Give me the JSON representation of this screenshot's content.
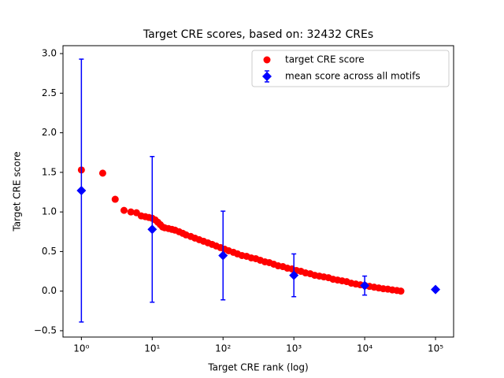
{
  "chart_data": {
    "type": "scatter",
    "title": "Target CRE scores, based on: 32432 CREs",
    "xlabel": "Target CRE rank (log)",
    "ylabel": "Target CRE score",
    "xscale": "log",
    "xlim": [
      0.55,
      180000
    ],
    "ylim": [
      -0.58,
      3.1
    ],
    "xticks": [
      {
        "value": 1,
        "label": "10⁰"
      },
      {
        "value": 10,
        "label": "10¹"
      },
      {
        "value": 100,
        "label": "10²"
      },
      {
        "value": 1000,
        "label": "10³"
      },
      {
        "value": 10000,
        "label": "10⁴"
      },
      {
        "value": 100000,
        "label": "10⁵"
      }
    ],
    "yticks": [
      {
        "value": -0.5,
        "label": "−0.5"
      },
      {
        "value": 0,
        "label": "0.0"
      },
      {
        "value": 0.5,
        "label": "0.5"
      },
      {
        "value": 1,
        "label": "1.0"
      },
      {
        "value": 1.5,
        "label": "1.5"
      },
      {
        "value": 2,
        "label": "2.0"
      },
      {
        "value": 2.5,
        "label": "2.5"
      },
      {
        "value": 3,
        "label": "3.0"
      }
    ],
    "legend": "upper right",
    "series": [
      {
        "name": "target CRE score",
        "color": "#ff0000",
        "marker": "circle",
        "x": [
          1,
          2,
          3,
          4,
          5,
          6,
          7,
          8,
          9,
          10,
          11,
          12,
          13,
          14,
          15,
          17,
          19,
          21,
          24,
          27,
          30,
          35,
          40,
          46,
          53,
          61,
          70,
          80,
          92,
          105,
          120,
          140,
          160,
          185,
          215,
          250,
          290,
          335,
          390,
          450,
          520,
          600,
          700,
          810,
          940,
          1090,
          1260,
          1460,
          1700,
          1970,
          2290,
          2650,
          3080,
          3570,
          4140,
          4800,
          5570,
          6460,
          7500,
          8700,
          10100,
          11700,
          13600,
          15800,
          18300,
          21200,
          24600,
          28500,
          32432
        ],
        "values": [
          1.53,
          1.49,
          1.16,
          1.02,
          1.0,
          0.99,
          0.95,
          0.94,
          0.93,
          0.92,
          0.9,
          0.87,
          0.84,
          0.81,
          0.8,
          0.79,
          0.78,
          0.77,
          0.75,
          0.73,
          0.71,
          0.69,
          0.67,
          0.65,
          0.63,
          0.61,
          0.59,
          0.57,
          0.55,
          0.53,
          0.51,
          0.49,
          0.47,
          0.45,
          0.44,
          0.42,
          0.41,
          0.39,
          0.37,
          0.36,
          0.34,
          0.32,
          0.31,
          0.29,
          0.28,
          0.26,
          0.25,
          0.23,
          0.22,
          0.2,
          0.19,
          0.18,
          0.17,
          0.15,
          0.14,
          0.13,
          0.12,
          0.1,
          0.09,
          0.08,
          0.07,
          0.06,
          0.05,
          0.04,
          0.03,
          0.025,
          0.015,
          0.008,
          0.0
        ]
      },
      {
        "name": "mean score across all motifs",
        "color": "#0000ff",
        "marker": "diamond",
        "x": [
          1,
          10,
          100,
          1000,
          10000,
          100000
        ],
        "values": [
          1.27,
          0.78,
          0.45,
          0.2,
          0.07,
          0.02
        ],
        "errors": [
          1.66,
          0.92,
          0.56,
          0.27,
          0.12,
          0
        ]
      }
    ]
  }
}
